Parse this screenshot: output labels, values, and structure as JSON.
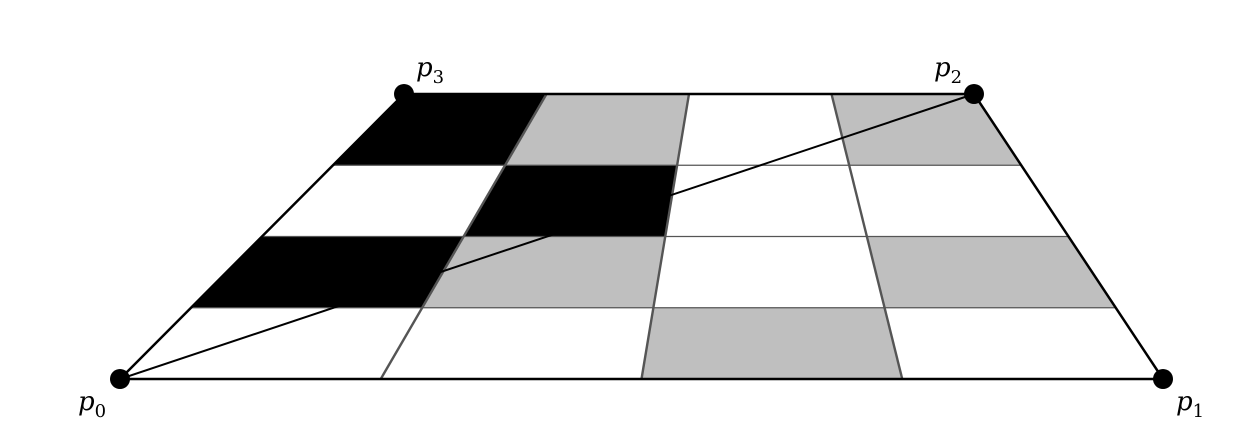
{
  "diagram": {
    "vertices": [
      {
        "id": "p0",
        "letter": "p",
        "index": "0"
      },
      {
        "id": "p1",
        "letter": "p",
        "index": "1"
      },
      {
        "id": "p2",
        "letter": "p",
        "index": "2"
      },
      {
        "id": "p3",
        "letter": "p",
        "index": "3"
      }
    ],
    "grid": {
      "columns": 4,
      "rows": 4,
      "cells": [
        [
          "white",
          "white",
          "gray",
          "white"
        ],
        [
          "black",
          "gray",
          "white",
          "gray"
        ],
        [
          "white",
          "black",
          "white",
          "white"
        ],
        [
          "black",
          "gray",
          "white",
          "gray"
        ]
      ]
    },
    "diagonal": {
      "from": "p0",
      "to": "p2"
    },
    "colors": {
      "black": "#000000",
      "gray": "#bfbfbf",
      "white": "#ffffff",
      "line": "#000000",
      "seam": "#555555"
    }
  }
}
